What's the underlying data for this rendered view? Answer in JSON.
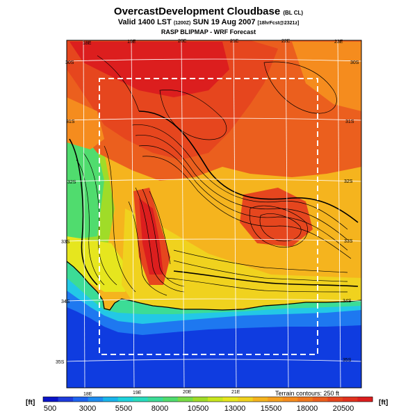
{
  "header": {
    "title": "OvercastDevelopment Cloudbase",
    "title_suffix": "(BL CL)",
    "valid_main": "Valid 1400 LST",
    "valid_z": "(1200Z)",
    "valid_date": "SUN 19 Aug 2007",
    "valid_fcst": "[18hrFcst@2321z]",
    "subtitle": "RASP BLIPMAP - WRF Forecast"
  },
  "map": {
    "top_lon_labels": [
      "18E",
      "19E",
      "20E",
      "21E",
      "22E",
      "23E"
    ],
    "bottom_lon_labels": [
      "18E",
      "19E",
      "20E",
      "21E"
    ],
    "left_lat_labels": [
      "30S",
      "31S",
      "32S",
      "33S",
      "34S",
      "35S"
    ],
    "right_lat_labels": [
      "30S",
      "31S",
      "32S",
      "33S",
      "34S",
      "35S"
    ],
    "terrain_note": "Terrain contours: 250 ft"
  },
  "colorbar": {
    "unit_left": "[ft]",
    "unit_right": "[ft]",
    "labels": [
      "500",
      "3000",
      "5500",
      "8000",
      "10500",
      "13000",
      "15500",
      "18000",
      "20500"
    ],
    "colors": [
      "#0a14c8",
      "#1e3cdc",
      "#1e64f0",
      "#1e8cf0",
      "#19b4eb",
      "#1ed2dc",
      "#28dcbe",
      "#3cdc96",
      "#50dc6e",
      "#78dc46",
      "#a0dc28",
      "#c8e61e",
      "#e6e61e",
      "#f0d21e",
      "#f5b41e",
      "#f5a01e",
      "#f58c1e",
      "#f0781e",
      "#eb5f1e",
      "#e6461e",
      "#e1321e",
      "#dc1e1e"
    ]
  }
}
